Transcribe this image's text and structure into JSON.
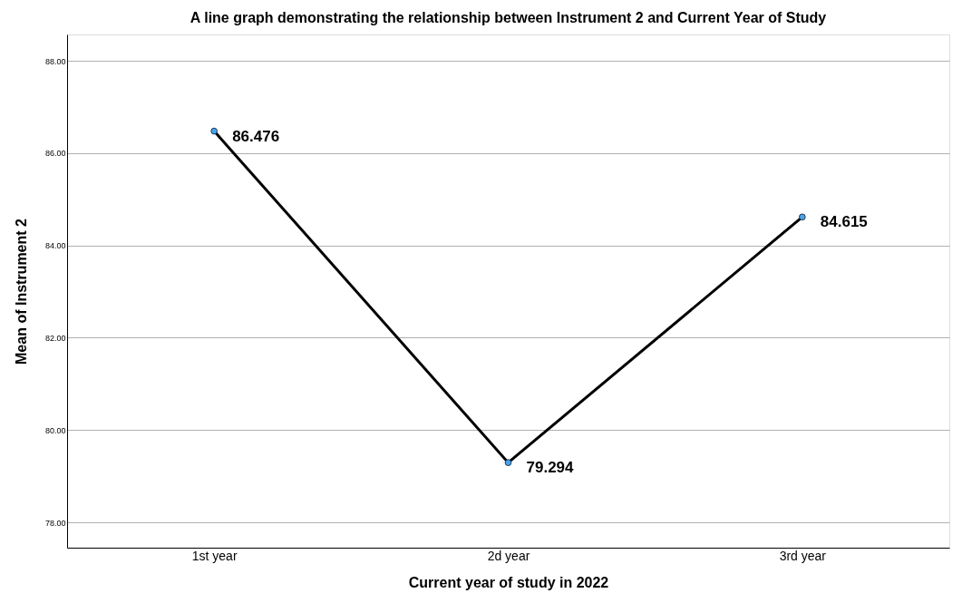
{
  "chart_data": {
    "type": "line",
    "title": "A line graph demonstrating the relationship between Instrument 2 and Current Year of Study",
    "xlabel": "Current year of study in 2022",
    "ylabel": "Mean of Instrument 2",
    "categories": [
      "1st year",
      "2d year",
      "3rd year"
    ],
    "series": [
      {
        "color": "#000000",
        "values": [
          86.476,
          79.294,
          84.615
        ]
      }
    ],
    "ylim": [
      77.45,
      88.57
    ],
    "yticks": [
      {
        "value": 78,
        "label": "78.00"
      },
      {
        "value": 80,
        "label": "80.00"
      },
      {
        "value": 82,
        "label": "82.00"
      },
      {
        "value": 84,
        "label": "84.00"
      },
      {
        "value": 86,
        "label": "86.00"
      },
      {
        "value": 88,
        "label": "88.00"
      }
    ],
    "grid": "y",
    "marker": "circle",
    "line_style": "solid",
    "data_labels": true
  }
}
